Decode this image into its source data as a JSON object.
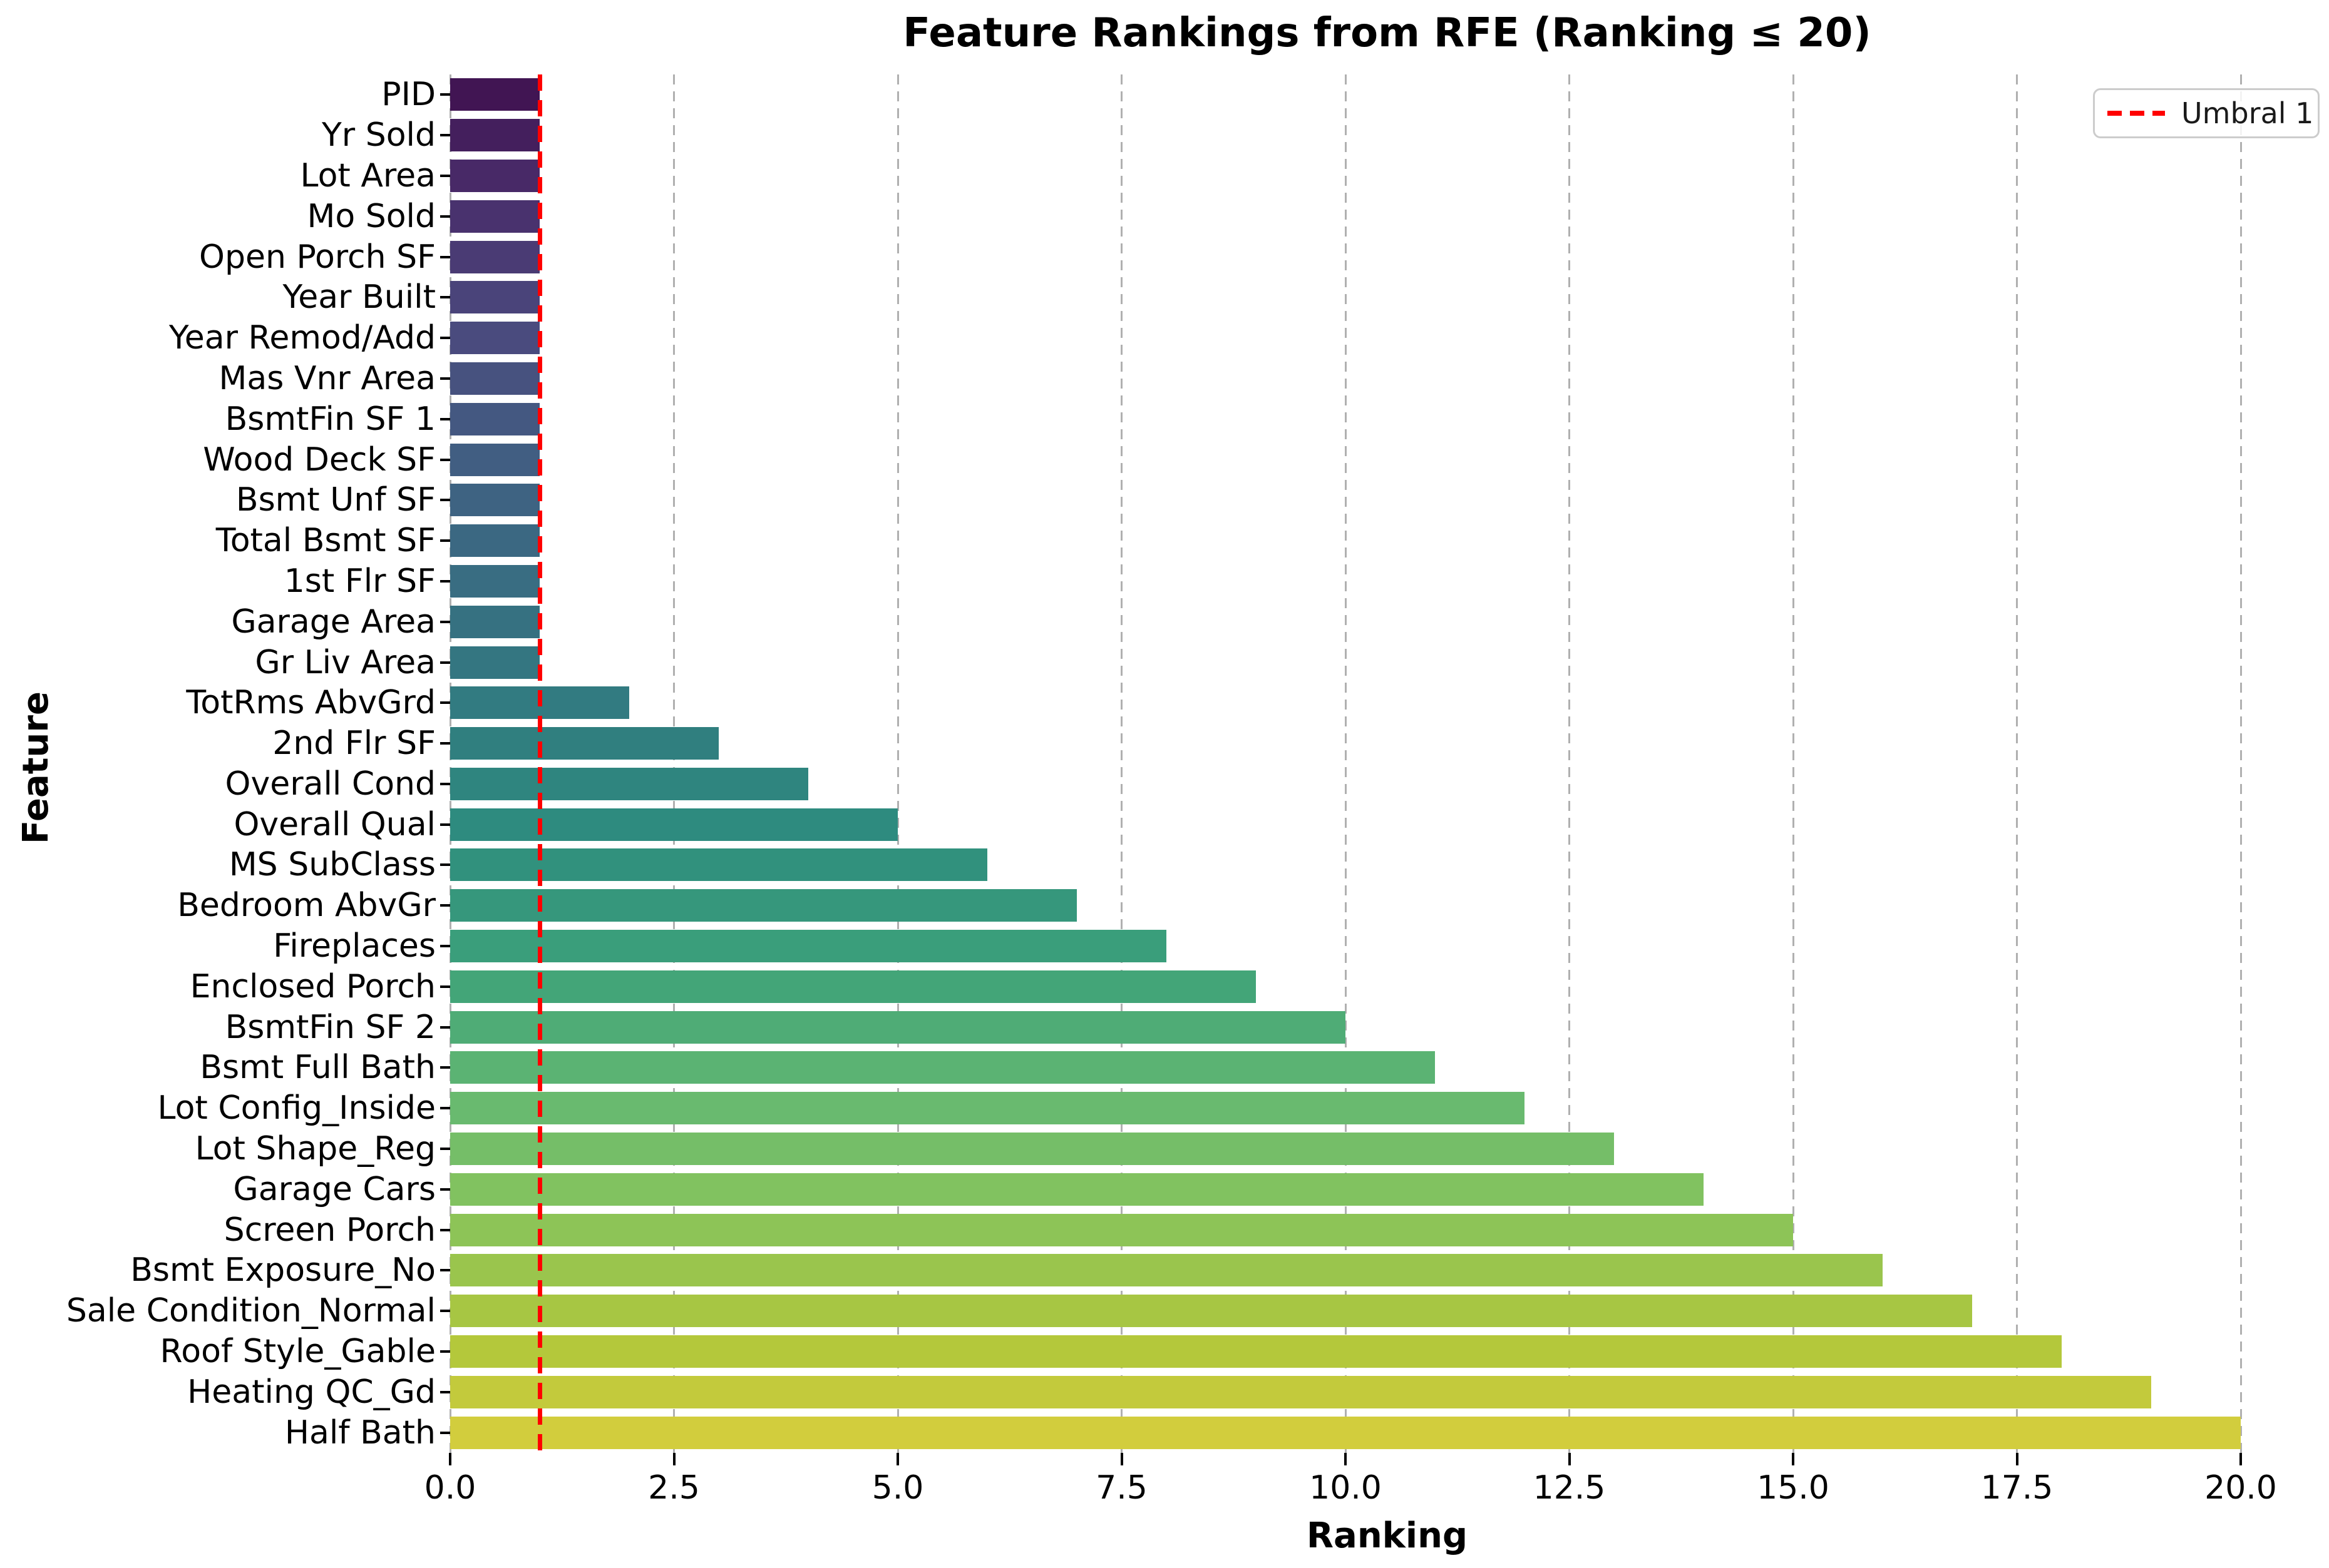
{
  "chart_data": {
    "type": "bar",
    "orientation": "horizontal",
    "title": "Feature Rankings from RFE (Ranking ≤ 20)",
    "xlabel": "Ranking",
    "ylabel": "Feature",
    "categories": [
      "PID",
      "Yr Sold",
      "Lot Area",
      "Mo Sold",
      "Open Porch SF",
      "Year Built",
      "Year Remod/Add",
      "Mas Vnr Area",
      "BsmtFin SF 1",
      "Wood Deck SF",
      "Bsmt Unf SF",
      "Total Bsmt SF",
      "1st Flr SF",
      "Garage Area",
      "Gr Liv Area",
      "TotRms AbvGrd",
      "2nd Flr SF",
      "Overall Cond",
      "Overall Qual",
      "MS SubClass",
      "Bedroom AbvGr",
      "Fireplaces",
      "Enclosed Porch",
      "BsmtFin SF 2",
      "Bsmt Full Bath",
      "Lot Config_Inside",
      "Lot Shape_Reg",
      "Garage Cars",
      "Screen Porch",
      "Bsmt Exposure_No",
      "Sale Condition_Normal",
      "Roof Style_Gable",
      "Heating QC_Gd",
      "Half Bath"
    ],
    "values": [
      1,
      1,
      1,
      1,
      1,
      1,
      1,
      1,
      1,
      1,
      1,
      1,
      1,
      1,
      1,
      2,
      3,
      4,
      5,
      6,
      7,
      8,
      9,
      10,
      11,
      12,
      13,
      14,
      15,
      16,
      17,
      18,
      19,
      20
    ],
    "xlim": [
      0,
      21
    ],
    "xticks": [
      0,
      2.5,
      5,
      7.5,
      10,
      12.5,
      15,
      17.5,
      20
    ],
    "xtick_labels": [
      "0.0",
      "2.5",
      "5.0",
      "7.5",
      "10.0",
      "12.5",
      "15.0",
      "17.5",
      "20.0"
    ],
    "grid": {
      "axis": "x",
      "style": "dashed",
      "color": "#b0b0b0"
    },
    "threshold_line": {
      "x": 1.0,
      "color": "#ff0000",
      "style": "dashed"
    },
    "legend": {
      "label": "Umbral 1",
      "position": "upper right",
      "line_color": "#ff0000",
      "line_style": "dashed",
      "border_color": "#cccccc"
    },
    "palette": {
      "name": "viridis",
      "anchors": [
        "#440154",
        "#482173",
        "#433e85",
        "#38598c",
        "#2d708e",
        "#25858e",
        "#1e9b8a",
        "#2ab07f",
        "#52c569",
        "#86d549",
        "#c2df23",
        "#fde725"
      ],
      "desaturation": 0.75,
      "sampling": "endpoints-excluded"
    }
  },
  "colors": {
    "background": "#ffffff",
    "text": "#000000",
    "grid": "#b0b0b0",
    "threshold": "#ff0000",
    "legend_border": "#cccccc"
  }
}
